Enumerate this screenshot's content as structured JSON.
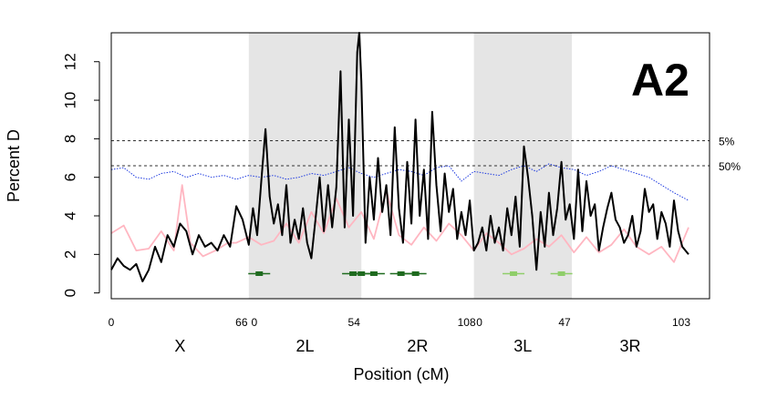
{
  "chart_data": {
    "type": "line",
    "panel_label": "A2",
    "xlabel": "Position (cM)",
    "ylabel": "Percent D",
    "ylim": [
      -0.3,
      13.5
    ],
    "yticks": [
      0,
      2,
      4,
      6,
      8,
      10,
      12
    ],
    "shading": {
      "color": "#e5e5e5",
      "shaded_arms": [
        "2L",
        "3L"
      ]
    },
    "arms": [
      {
        "name": "X",
        "length": 66,
        "start_label": "0",
        "end_label": "66"
      },
      {
        "name": "2L",
        "length": 54,
        "start_label": "0",
        "end_label": "54"
      },
      {
        "name": "2R",
        "length": 54,
        "start_label": "",
        "end_label": "108"
      },
      {
        "name": "3L",
        "length": 47,
        "start_label": "0",
        "end_label": "47"
      },
      {
        "name": "3R",
        "length": 56,
        "start_label": "",
        "end_label": "103"
      }
    ],
    "thresholds": [
      {
        "label": "5%",
        "value": 7.9
      },
      {
        "label": "50%",
        "value": 6.6
      }
    ],
    "series": [
      {
        "color": "#ffb6c1",
        "style": "solid",
        "x": [
          0,
          6,
          12,
          18,
          24,
          30,
          34,
          38,
          44,
          50,
          56,
          60,
          66,
          72,
          78,
          84,
          90,
          96,
          102,
          108,
          114,
          120,
          126,
          132,
          138,
          144,
          150,
          156,
          162,
          168,
          174,
          180,
          186,
          192,
          198,
          204,
          210,
          216,
          222,
          228,
          234,
          240,
          246,
          252,
          258,
          264,
          270,
          277
        ],
        "y": [
          3.1,
          3.5,
          2.2,
          2.3,
          3.2,
          2.2,
          5.6,
          2.6,
          1.9,
          2.2,
          2.6,
          2.6,
          2.9,
          2.5,
          2.7,
          3.6,
          2.6,
          4.2,
          3.1,
          4.9,
          3.4,
          4.2,
          2.8,
          5.3,
          3.0,
          2.5,
          3.4,
          2.7,
          3.6,
          3.0,
          2.2,
          3.1,
          2.6,
          2.0,
          2.3,
          2.8,
          2.4,
          3.0,
          2.1,
          2.9,
          2.1,
          2.5,
          3.3,
          2.4,
          2.0,
          2.4,
          1.6,
          3.4
        ]
      },
      {
        "color": "#1f3be0",
        "style": "dotted",
        "x": [
          0,
          6,
          12,
          18,
          24,
          30,
          36,
          42,
          48,
          54,
          60,
          66,
          72,
          78,
          84,
          90,
          96,
          102,
          108,
          114,
          120,
          126,
          132,
          138,
          144,
          150,
          156,
          162,
          168,
          174,
          180,
          186,
          192,
          198,
          204,
          210,
          216,
          222,
          228,
          234,
          240,
          246,
          252,
          258,
          264,
          270,
          277
        ],
        "y": [
          6.4,
          6.5,
          6.0,
          5.9,
          6.2,
          6.3,
          6.0,
          6.2,
          6.0,
          6.1,
          5.9,
          6.1,
          6.0,
          6.1,
          5.9,
          6.0,
          6.2,
          6.1,
          6.3,
          6.5,
          6.2,
          6.0,
          6.2,
          6.4,
          6.3,
          6.1,
          6.5,
          6.6,
          5.8,
          6.3,
          6.2,
          6.1,
          6.4,
          6.6,
          6.3,
          6.7,
          6.5,
          6.4,
          6.1,
          6.3,
          6.6,
          6.4,
          6.2,
          6.0,
          5.6,
          5.2,
          4.8
        ]
      },
      {
        "color": "#000000",
        "style": "solid",
        "x": [
          0,
          3,
          6,
          9,
          12,
          15,
          18,
          21,
          24,
          27,
          30,
          33,
          36,
          39,
          42,
          45,
          48,
          51,
          54,
          57,
          60,
          63,
          66,
          68,
          70,
          72,
          74,
          76,
          78,
          80,
          82,
          84,
          86,
          88,
          90,
          92,
          94,
          96,
          98,
          100,
          102,
          104,
          106,
          108,
          110,
          112,
          114,
          116,
          118,
          119,
          120,
          122,
          124,
          126,
          128,
          130,
          132,
          134,
          136,
          138,
          140,
          142,
          144,
          146,
          148,
          150,
          152,
          154,
          156,
          158,
          160,
          162,
          164,
          166,
          168,
          170,
          172,
          174,
          176,
          178,
          180,
          182,
          184,
          186,
          188,
          190,
          192,
          194,
          196,
          198,
          200,
          202,
          204,
          206,
          208,
          210,
          212,
          214,
          216,
          218,
          220,
          222,
          224,
          226,
          228,
          230,
          232,
          234,
          236,
          238,
          240,
          242,
          244,
          246,
          248,
          250,
          252,
          254,
          256,
          258,
          260,
          262,
          264,
          266,
          268,
          270,
          272,
          274,
          277
        ],
        "y": [
          1.2,
          1.8,
          1.4,
          1.2,
          1.5,
          0.6,
          1.2,
          2.4,
          1.6,
          3.0,
          2.4,
          3.6,
          3.2,
          2.0,
          3.0,
          2.4,
          2.6,
          2.2,
          3.0,
          2.4,
          4.5,
          3.8,
          2.5,
          4.4,
          3.0,
          5.8,
          8.5,
          5.0,
          3.6,
          4.6,
          3.0,
          5.6,
          2.6,
          3.8,
          2.8,
          4.4,
          2.6,
          1.8,
          3.8,
          6.0,
          3.2,
          5.6,
          3.4,
          5.5,
          11.5,
          3.4,
          9.0,
          4.0,
          12.5,
          13.5,
          11.0,
          2.6,
          6.0,
          3.8,
          7.0,
          4.2,
          5.6,
          3.0,
          8.6,
          4.4,
          2.6,
          6.8,
          3.6,
          9.0,
          4.0,
          6.4,
          2.8,
          9.4,
          5.6,
          3.2,
          6.2,
          4.2,
          5.4,
          2.8,
          4.2,
          3.0,
          4.8,
          2.2,
          2.6,
          3.4,
          2.2,
          4.0,
          2.6,
          3.4,
          2.2,
          4.4,
          3.0,
          5.0,
          2.4,
          7.6,
          6.0,
          4.0,
          1.2,
          4.2,
          2.4,
          5.2,
          3.0,
          4.4,
          6.8,
          3.8,
          4.6,
          2.8,
          6.4,
          3.2,
          5.8,
          4.0,
          4.6,
          2.2,
          3.4,
          4.4,
          5.2,
          3.8,
          3.4,
          2.6,
          3.0,
          4.0,
          2.4,
          3.2,
          5.4,
          4.2,
          4.6,
          2.8,
          4.2,
          3.6,
          2.4,
          4.8,
          3.2,
          2.4,
          2.0
        ]
      }
    ],
    "markers": [
      {
        "color": "#1f6b1f",
        "x": [
          71,
          116,
          120,
          126,
          139,
          146
        ]
      },
      {
        "color": "#8fce6a",
        "x": [
          193,
          216
        ]
      }
    ]
  }
}
